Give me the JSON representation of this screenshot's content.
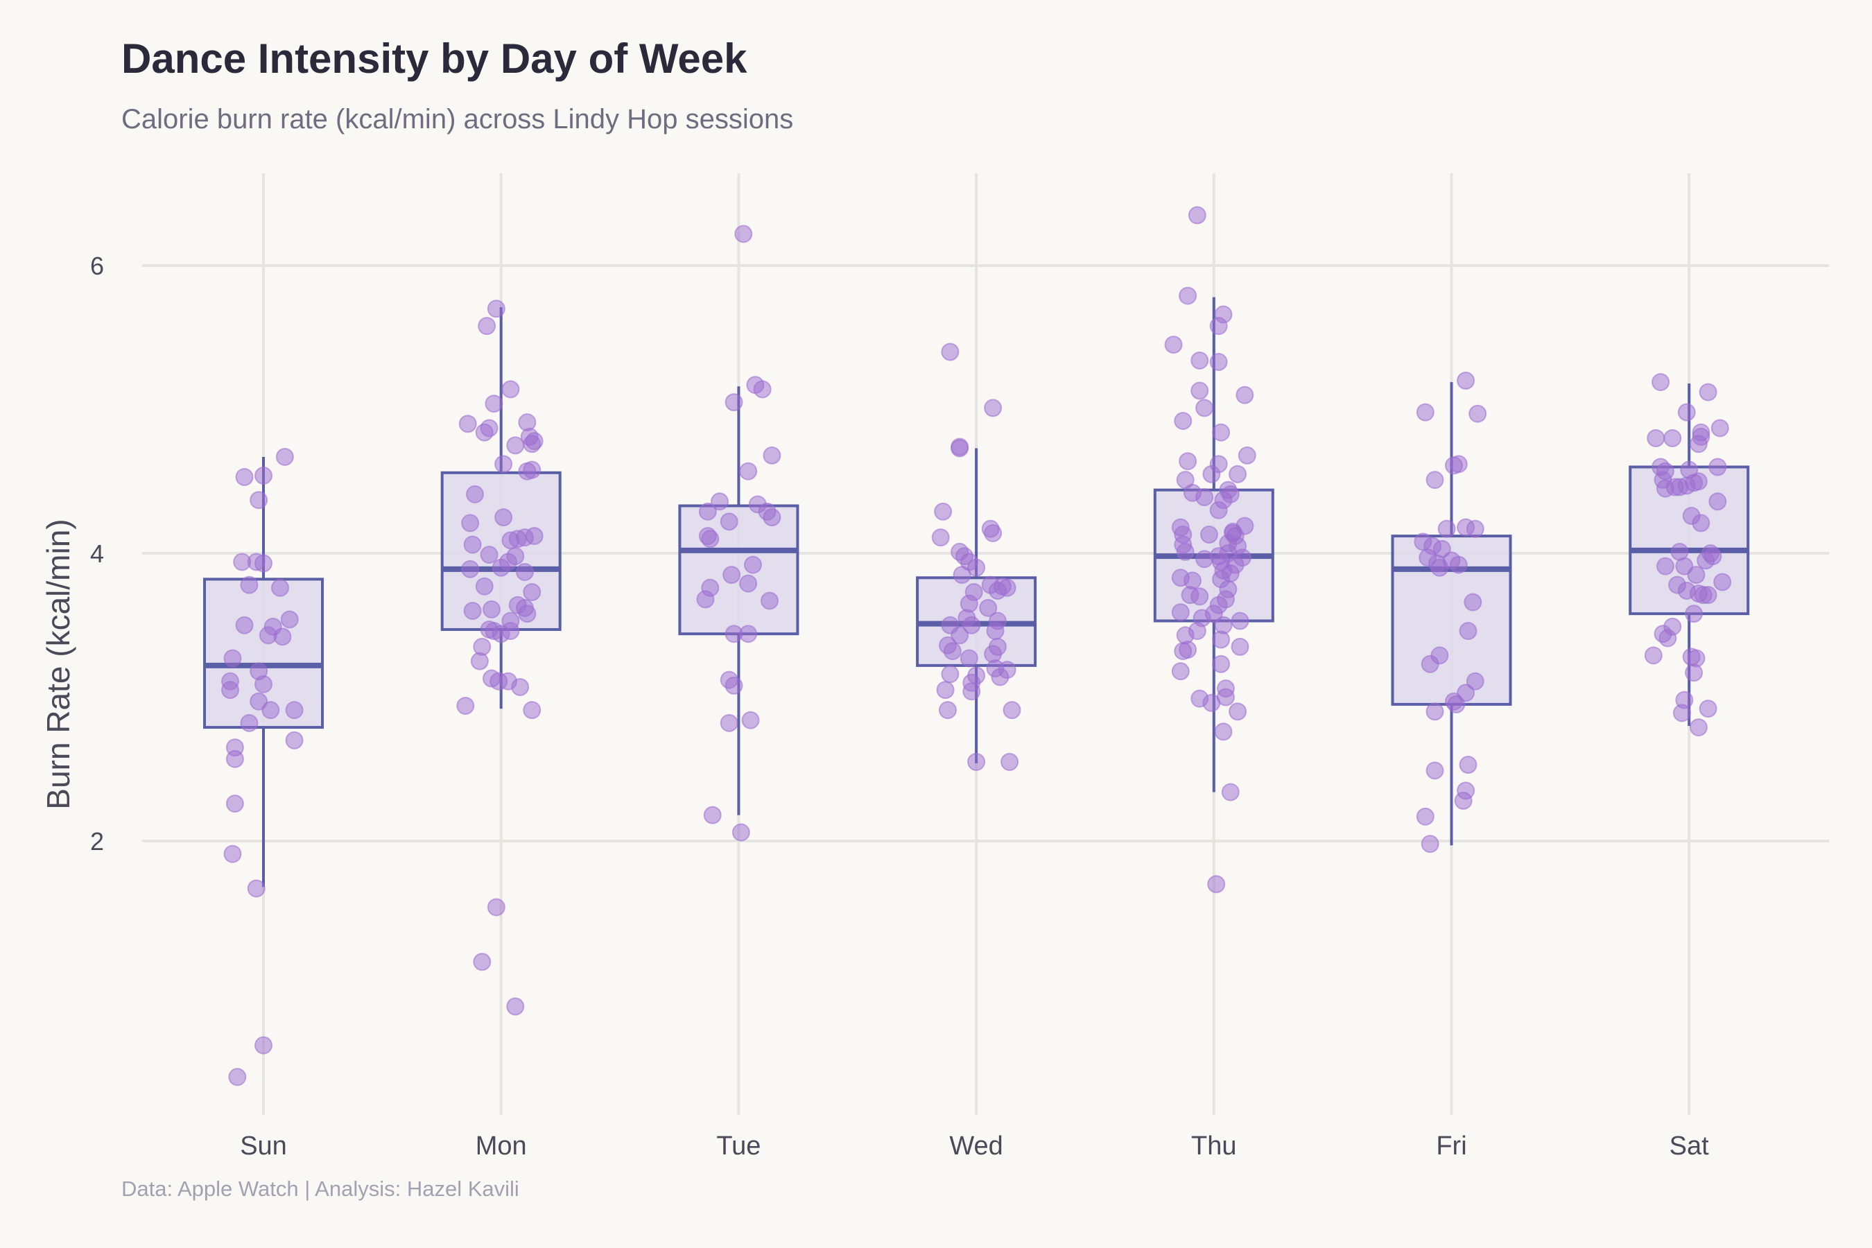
{
  "chart_data": {
    "type": "box",
    "title": "Dance Intensity by Day of Week",
    "subtitle": "Calorie burn rate (kcal/min) across Lindy Hop sessions",
    "caption": "Data: Apple Watch | Analysis: Hazel Kavili",
    "xlabel": "",
    "ylabel": "Burn Rate (kcal/min)",
    "ylim": [
      0.2,
      6.65
    ],
    "yticks": [
      2,
      4,
      6
    ],
    "grid": true,
    "legend": "none",
    "colors": {
      "background": "#f9f8f5",
      "grid": "#e6e4df",
      "box_fill": "#ded9ec",
      "box_stroke": "#5a5ea6",
      "point": "#9b6bd0"
    },
    "categories": [
      "Sun",
      "Mon",
      "Tue",
      "Wed",
      "Thu",
      "Fri",
      "Sat"
    ],
    "boxes": [
      {
        "day": "Sun",
        "whisker_low": 1.68,
        "q1": 2.79,
        "median": 3.22,
        "q3": 3.82,
        "whisker_high": 4.67
      },
      {
        "day": "Mon",
        "whisker_low": 2.92,
        "q1": 3.47,
        "median": 3.89,
        "q3": 4.56,
        "whisker_high": 5.71
      },
      {
        "day": "Tue",
        "whisker_low": 2.18,
        "q1": 3.44,
        "median": 4.02,
        "q3": 4.33,
        "whisker_high": 5.16
      },
      {
        "day": "Wed",
        "whisker_low": 2.54,
        "q1": 3.22,
        "median": 3.51,
        "q3": 3.83,
        "whisker_high": 4.73
      },
      {
        "day": "Thu",
        "whisker_low": 2.34,
        "q1": 3.53,
        "median": 3.98,
        "q3": 4.44,
        "whisker_high": 5.78
      },
      {
        "day": "Fri",
        "whisker_low": 1.97,
        "q1": 2.95,
        "median": 3.89,
        "q3": 4.12,
        "whisker_high": 5.19
      },
      {
        "day": "Sat",
        "whisker_low": 2.8,
        "q1": 3.58,
        "median": 4.02,
        "q3": 4.6,
        "whisker_high": 5.18
      }
    ],
    "points": {
      "Sun": [
        [
          -0.08,
          4.53
        ],
        [
          0.0,
          4.54
        ],
        [
          0.09,
          4.67
        ],
        [
          -0.02,
          4.37
        ],
        [
          -0.09,
          3.94
        ],
        [
          -0.03,
          3.94
        ],
        [
          0.0,
          3.93
        ],
        [
          -0.06,
          3.78
        ],
        [
          0.07,
          3.76
        ],
        [
          -0.08,
          3.5
        ],
        [
          0.04,
          3.49
        ],
        [
          0.11,
          3.54
        ],
        [
          0.02,
          3.43
        ],
        [
          0.08,
          3.42
        ],
        [
          -0.13,
          3.27
        ],
        [
          -0.02,
          3.18
        ],
        [
          -0.14,
          3.11
        ],
        [
          -0.14,
          3.05
        ],
        [
          0.0,
          3.09
        ],
        [
          -0.02,
          2.97
        ],
        [
          0.03,
          2.91
        ],
        [
          0.13,
          2.91
        ],
        [
          -0.06,
          2.82
        ],
        [
          0.13,
          2.7
        ],
        [
          -0.12,
          2.65
        ],
        [
          -0.12,
          2.57
        ],
        [
          -0.12,
          2.26
        ],
        [
          -0.13,
          1.91
        ],
        [
          -0.03,
          1.67
        ],
        [
          0.0,
          0.58
        ],
        [
          -0.11,
          0.36
        ]
      ],
      "Mon": [
        [
          -0.06,
          5.58
        ],
        [
          -0.02,
          5.7
        ],
        [
          0.04,
          5.14
        ],
        [
          -0.03,
          5.04
        ],
        [
          -0.14,
          4.9
        ],
        [
          -0.05,
          4.87
        ],
        [
          -0.07,
          4.84
        ],
        [
          0.11,
          4.91
        ],
        [
          0.12,
          4.81
        ],
        [
          0.13,
          4.76
        ],
        [
          0.14,
          4.78
        ],
        [
          0.06,
          4.75
        ],
        [
          0.01,
          4.62
        ],
        [
          0.13,
          4.58
        ],
        [
          0.11,
          4.57
        ],
        [
          -0.11,
          4.41
        ],
        [
          0.01,
          4.25
        ],
        [
          -0.13,
          4.21
        ],
        [
          -0.12,
          4.06
        ],
        [
          0.04,
          4.09
        ],
        [
          0.07,
          4.1
        ],
        [
          0.1,
          4.11
        ],
        [
          0.14,
          4.12
        ],
        [
          -0.05,
          3.99
        ],
        [
          0.06,
          3.98
        ],
        [
          0.0,
          3.9
        ],
        [
          -0.13,
          3.89
        ],
        [
          0.03,
          3.94
        ],
        [
          0.1,
          3.87
        ],
        [
          -0.07,
          3.77
        ],
        [
          0.13,
          3.73
        ],
        [
          -0.12,
          3.6
        ],
        [
          -0.04,
          3.61
        ],
        [
          0.07,
          3.64
        ],
        [
          0.1,
          3.62
        ],
        [
          0.11,
          3.58
        ],
        [
          0.04,
          3.53
        ],
        [
          -0.05,
          3.47
        ],
        [
          -0.03,
          3.46
        ],
        [
          0.0,
          3.44
        ],
        [
          0.04,
          3.46
        ],
        [
          -0.08,
          3.35
        ],
        [
          -0.09,
          3.25
        ],
        [
          -0.04,
          3.13
        ],
        [
          -0.01,
          3.11
        ],
        [
          0.03,
          3.11
        ],
        [
          0.08,
          3.07
        ],
        [
          -0.15,
          2.94
        ],
        [
          0.13,
          2.91
        ],
        [
          -0.02,
          1.54
        ],
        [
          -0.08,
          1.16
        ],
        [
          0.06,
          0.85
        ]
      ],
      "Tue": [
        [
          0.02,
          6.22
        ],
        [
          0.07,
          5.17
        ],
        [
          0.1,
          5.14
        ],
        [
          -0.02,
          5.05
        ],
        [
          0.14,
          4.68
        ],
        [
          0.04,
          4.57
        ],
        [
          -0.08,
          4.36
        ],
        [
          0.08,
          4.34
        ],
        [
          0.12,
          4.29
        ],
        [
          -0.13,
          4.29
        ],
        [
          0.14,
          4.25
        ],
        [
          -0.04,
          4.22
        ],
        [
          -0.13,
          4.12
        ],
        [
          -0.12,
          4.1
        ],
        [
          0.06,
          3.92
        ],
        [
          -0.03,
          3.85
        ],
        [
          -0.12,
          3.76
        ],
        [
          0.04,
          3.79
        ],
        [
          -0.14,
          3.68
        ],
        [
          0.13,
          3.67
        ],
        [
          -0.02,
          3.44
        ],
        [
          0.04,
          3.44
        ],
        [
          -0.04,
          3.12
        ],
        [
          -0.02,
          3.08
        ],
        [
          -0.04,
          2.82
        ],
        [
          0.05,
          2.84
        ],
        [
          -0.11,
          2.18
        ],
        [
          0.01,
          2.06
        ]
      ],
      "Wed": [
        [
          -0.11,
          5.4
        ],
        [
          0.07,
          5.01
        ],
        [
          -0.07,
          4.74
        ],
        [
          -0.07,
          4.73
        ],
        [
          -0.14,
          4.29
        ],
        [
          0.06,
          4.17
        ],
        [
          0.07,
          4.14
        ],
        [
          -0.15,
          4.11
        ],
        [
          -0.07,
          4.01
        ],
        [
          -0.05,
          3.98
        ],
        [
          -0.03,
          3.94
        ],
        [
          0.0,
          3.9
        ],
        [
          -0.06,
          3.85
        ],
        [
          0.06,
          3.78
        ],
        [
          0.11,
          3.77
        ],
        [
          0.13,
          3.76
        ],
        [
          -0.01,
          3.73
        ],
        [
          0.09,
          3.74
        ],
        [
          -0.03,
          3.65
        ],
        [
          0.05,
          3.62
        ],
        [
          -0.04,
          3.55
        ],
        [
          0.09,
          3.53
        ],
        [
          -0.11,
          3.5
        ],
        [
          -0.02,
          3.5
        ],
        [
          0.08,
          3.46
        ],
        [
          -0.07,
          3.43
        ],
        [
          -0.12,
          3.36
        ],
        [
          0.09,
          3.35
        ],
        [
          -0.1,
          3.32
        ],
        [
          0.07,
          3.3
        ],
        [
          -0.03,
          3.27
        ],
        [
          0.08,
          3.2
        ],
        [
          0.13,
          3.19
        ],
        [
          -0.11,
          3.16
        ],
        [
          0.0,
          3.15
        ],
        [
          0.1,
          3.14
        ],
        [
          -0.02,
          3.1
        ],
        [
          -0.13,
          3.05
        ],
        [
          -0.02,
          3.04
        ],
        [
          -0.12,
          2.91
        ],
        [
          0.15,
          2.91
        ],
        [
          0.0,
          2.55
        ],
        [
          0.14,
          2.55
        ]
      ],
      "Thu": [
        [
          -0.07,
          6.35
        ],
        [
          -0.11,
          5.79
        ],
        [
          0.04,
          5.66
        ],
        [
          0.02,
          5.58
        ],
        [
          -0.17,
          5.45
        ],
        [
          -0.06,
          5.34
        ],
        [
          0.02,
          5.33
        ],
        [
          -0.06,
          5.13
        ],
        [
          0.13,
          5.1
        ],
        [
          -0.04,
          5.01
        ],
        [
          -0.13,
          4.92
        ],
        [
          0.03,
          4.84
        ],
        [
          0.14,
          4.68
        ],
        [
          -0.11,
          4.64
        ],
        [
          0.02,
          4.62
        ],
        [
          -0.01,
          4.55
        ],
        [
          0.1,
          4.55
        ],
        [
          -0.12,
          4.51
        ],
        [
          0.06,
          4.44
        ],
        [
          -0.09,
          4.42
        ],
        [
          0.07,
          4.41
        ],
        [
          -0.04,
          4.39
        ],
        [
          0.04,
          4.37
        ],
        [
          0.02,
          4.3
        ],
        [
          -0.14,
          4.18
        ],
        [
          0.13,
          4.19
        ],
        [
          -0.13,
          4.13
        ],
        [
          0.08,
          4.15
        ],
        [
          0.08,
          4.14
        ],
        [
          0.09,
          4.12
        ],
        [
          -0.02,
          4.13
        ],
        [
          0.06,
          4.07
        ],
        [
          -0.13,
          4.06
        ],
        [
          0.1,
          4.05
        ],
        [
          -0.12,
          4.01
        ],
        [
          0.06,
          4.0
        ],
        [
          0.02,
          3.98
        ],
        [
          -0.04,
          3.96
        ],
        [
          0.03,
          3.94
        ],
        [
          0.12,
          3.97
        ],
        [
          0.09,
          3.92
        ],
        [
          0.04,
          3.88
        ],
        [
          0.07,
          3.86
        ],
        [
          -0.14,
          3.83
        ],
        [
          0.03,
          3.82
        ],
        [
          -0.09,
          3.81
        ],
        [
          0.06,
          3.75
        ],
        [
          -0.1,
          3.71
        ],
        [
          -0.06,
          3.7
        ],
        [
          0.05,
          3.68
        ],
        [
          0.02,
          3.64
        ],
        [
          -0.14,
          3.59
        ],
        [
          0.0,
          3.58
        ],
        [
          -0.05,
          3.55
        ],
        [
          0.11,
          3.53
        ],
        [
          0.04,
          3.5
        ],
        [
          -0.07,
          3.46
        ],
        [
          -0.12,
          3.43
        ],
        [
          0.03,
          3.4
        ],
        [
          0.11,
          3.35
        ],
        [
          -0.13,
          3.32
        ],
        [
          -0.11,
          3.33
        ],
        [
          0.03,
          3.23
        ],
        [
          -0.14,
          3.18
        ],
        [
          0.05,
          3.06
        ],
        [
          0.05,
          3.0
        ],
        [
          -0.06,
          2.99
        ],
        [
          -0.01,
          2.96
        ],
        [
          0.1,
          2.9
        ],
        [
          0.04,
          2.76
        ],
        [
          0.07,
          2.34
        ],
        [
          0.01,
          1.7
        ]
      ],
      "Fri": [
        [
          0.06,
          5.2
        ],
        [
          -0.11,
          4.98
        ],
        [
          0.11,
          4.97
        ],
        [
          0.03,
          4.62
        ],
        [
          0.01,
          4.61
        ],
        [
          -0.07,
          4.51
        ],
        [
          0.06,
          4.18
        ],
        [
          -0.02,
          4.17
        ],
        [
          0.1,
          4.17
        ],
        [
          -0.12,
          4.08
        ],
        [
          -0.08,
          4.05
        ],
        [
          -0.04,
          4.03
        ],
        [
          0.0,
          3.95
        ],
        [
          -0.1,
          3.97
        ],
        [
          -0.06,
          3.93
        ],
        [
          0.03,
          3.92
        ],
        [
          -0.05,
          3.9
        ],
        [
          0.09,
          3.66
        ],
        [
          0.07,
          3.46
        ],
        [
          -0.05,
          3.29
        ],
        [
          -0.09,
          3.23
        ],
        [
          0.1,
          3.11
        ],
        [
          0.06,
          3.03
        ],
        [
          0.01,
          2.97
        ],
        [
          0.02,
          2.95
        ],
        [
          -0.07,
          2.9
        ],
        [
          0.07,
          2.53
        ],
        [
          -0.07,
          2.49
        ],
        [
          0.06,
          2.35
        ],
        [
          0.05,
          2.28
        ],
        [
          -0.11,
          2.17
        ],
        [
          -0.09,
          1.98
        ]
      ],
      "Sat": [
        [
          -0.12,
          5.19
        ],
        [
          0.08,
          5.12
        ],
        [
          -0.01,
          4.98
        ],
        [
          0.05,
          4.84
        ],
        [
          0.05,
          4.81
        ],
        [
          0.13,
          4.87
        ],
        [
          -0.14,
          4.8
        ],
        [
          -0.07,
          4.8
        ],
        [
          0.04,
          4.76
        ],
        [
          -0.12,
          4.6
        ],
        [
          -0.1,
          4.57
        ],
        [
          0.0,
          4.58
        ],
        [
          0.12,
          4.6
        ],
        [
          -0.11,
          4.51
        ],
        [
          0.04,
          4.5
        ],
        [
          -0.1,
          4.45
        ],
        [
          -0.06,
          4.46
        ],
        [
          -0.04,
          4.46
        ],
        [
          -0.01,
          4.47
        ],
        [
          0.02,
          4.49
        ],
        [
          0.12,
          4.36
        ],
        [
          0.01,
          4.26
        ],
        [
          0.05,
          4.21
        ],
        [
          -0.04,
          4.01
        ],
        [
          0.09,
          4.0
        ],
        [
          0.1,
          3.98
        ],
        [
          -0.1,
          3.91
        ],
        [
          -0.02,
          3.91
        ],
        [
          0.07,
          3.95
        ],
        [
          0.03,
          3.85
        ],
        [
          0.14,
          3.8
        ],
        [
          -0.05,
          3.78
        ],
        [
          -0.01,
          3.74
        ],
        [
          0.04,
          3.72
        ],
        [
          0.06,
          3.71
        ],
        [
          0.08,
          3.71
        ],
        [
          0.02,
          3.58
        ],
        [
          -0.07,
          3.49
        ],
        [
          -0.11,
          3.44
        ],
        [
          -0.09,
          3.41
        ],
        [
          -0.15,
          3.29
        ],
        [
          0.01,
          3.28
        ],
        [
          0.03,
          3.27
        ],
        [
          0.02,
          3.17
        ],
        [
          -0.02,
          2.98
        ],
        [
          -0.03,
          2.89
        ],
        [
          0.08,
          2.92
        ],
        [
          0.04,
          2.79
        ]
      ]
    }
  }
}
